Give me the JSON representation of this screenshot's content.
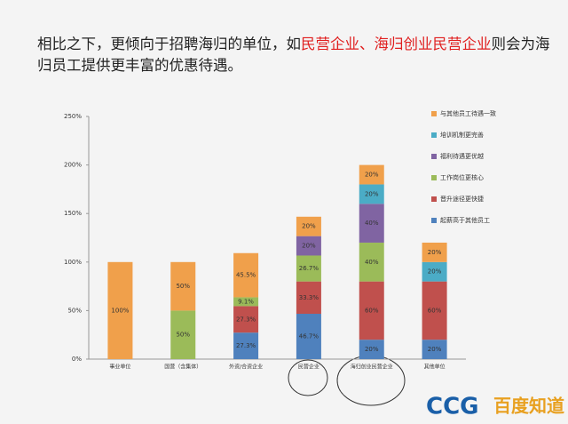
{
  "header": {
    "title": [
      "相比之下，更倾向于招聘海归的单位，如",
      "民营企业、海归创业民营企业",
      "则会为海归员工提供更丰富的优惠待遇。"
    ]
  },
  "chart_data": {
    "type": "stacked_bar",
    "categories": [
      "事业单位",
      "国营（含集体）",
      "外资/合资企业",
      "民营企业",
      "海归创业民营企业",
      "其他单位"
    ],
    "ylim": [
      0,
      250
    ],
    "yticks": [
      {
        "value": 0,
        "label": "0%"
      },
      {
        "value": 50,
        "label": "50%"
      },
      {
        "value": 100,
        "label": "100%"
      },
      {
        "value": 150,
        "label": "150%"
      },
      {
        "value": 200,
        "label": "200%"
      },
      {
        "value": 250,
        "label": "250%"
      }
    ],
    "series": [
      {
        "name": "起薪高于其他员工",
        "color": "#4f81bd",
        "values": [
          null,
          null,
          27.3,
          46.7,
          20,
          20
        ],
        "value_labels": [
          null,
          null,
          "27.3%",
          "46.7%",
          "20%",
          "20%"
        ]
      },
      {
        "name": "晋升途径更快捷",
        "color": "#c0504d",
        "values": [
          null,
          null,
          27.3,
          33.3,
          60,
          60
        ],
        "value_labels": [
          null,
          null,
          "27.3%",
          "33.3%",
          "60%",
          "60%"
        ]
      },
      {
        "name": "工作岗位更核心",
        "color": "#9bbb59",
        "values": [
          null,
          50,
          9.1,
          26.7,
          40,
          null
        ],
        "value_labels": [
          null,
          "50%",
          "9.1%",
          "26.7%",
          "40%",
          null
        ]
      },
      {
        "name": "福利待遇更优越",
        "color": "#8064a2",
        "values": [
          null,
          null,
          null,
          20,
          40,
          null
        ],
        "value_labels": [
          null,
          null,
          null,
          "20%",
          "40%",
          null
        ]
      },
      {
        "name": "培训机制更完善",
        "color": "#4bacc6",
        "values": [
          null,
          null,
          null,
          null,
          20,
          20
        ],
        "value_labels": [
          null,
          null,
          null,
          null,
          "20%",
          "20%"
        ]
      },
      {
        "name": "与其他员工待遇一致",
        "color": "#f0a04b",
        "values": [
          100,
          50,
          45.5,
          20,
          20,
          20
        ],
        "value_labels": [
          "100%",
          "50%",
          "45.5%",
          "20%",
          "20%",
          "20%"
        ]
      }
    ]
  },
  "footer": {
    "logo": "CCG",
    "watermark": "百度知道"
  }
}
